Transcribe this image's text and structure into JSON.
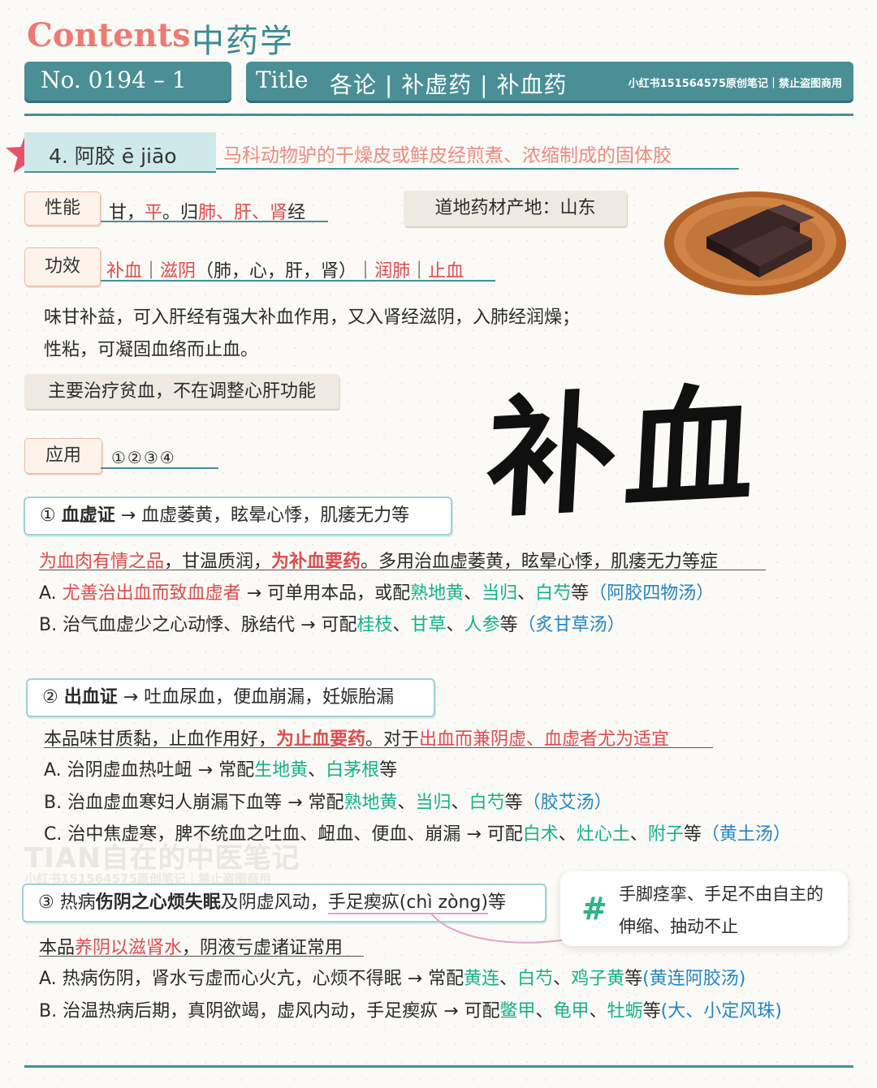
{
  "header": {
    "contents": "Contents",
    "subject": "中药学",
    "no_text": "No. 0194 – 1",
    "title_label": "Title",
    "title_text": "各论 | 补虚药 | 补血药",
    "copyright": "小红书151564575原创笔记｜禁止盗图商用"
  },
  "herb": {
    "heading": "4.  阿胶 ē jiāo",
    "definition": "马科动物驴的干燥皮或鲜皮经煎煮、浓缩制成的固体胶"
  },
  "xingneng": {
    "label": "性能",
    "p1": "甘，",
    "p2": "平",
    "p3": "。归",
    "p4": "肺、肝、肾",
    "p5": "经"
  },
  "origin": "道地药材产地：山东",
  "gongxiao": {
    "label": "功效",
    "p1": "补血",
    "p2": "｜",
    "p3": "滋阴",
    "p4": "（肺，心，肝，肾）｜",
    "p5": "润肺",
    "p6": "｜",
    "p7": "止血"
  },
  "description": {
    "line1": "味甘补益，可入肝经有强大补血作用，又入肾经滋阴，入肺经润燥；",
    "line2": "性粘，可凝固血络而止血。"
  },
  "note": "主要治疗贫血，不在调整心肝功能",
  "yingyong": {
    "label": "应用",
    "items": "①②③④"
  },
  "calligraphy": "补血",
  "section1": {
    "box": {
      "num": "① ",
      "name": "血虚证",
      "rest": " → 血虚萎黄，眩晕心悸，肌痿无力等"
    },
    "intro": {
      "p1": "为血肉有情之品",
      "p2": "，甘温质润，",
      "p3": "为补血要药",
      "p4": "。多用治血虚萎黄，眩晕心悸，肌痿无力等症"
    },
    "a": {
      "p1": "A. ",
      "p2": "尤善治出血而致血虚者",
      "p3": " → 可单用本品，或配",
      "p4": "熟地黄",
      "p5": "、",
      "p6": "当归",
      "p7": "、",
      "p8": "白芍",
      "p9": "等",
      "p10": "（阿胶四物汤）"
    },
    "b": {
      "p1": "B. 治气血虚少之心动悸、脉结代 → 可配",
      "p2": "桂枝",
      "p3": "、",
      "p4": "甘草",
      "p5": "、",
      "p6": "人参",
      "p7": "等",
      "p8": "（炙甘草汤）"
    }
  },
  "section2": {
    "box": {
      "num": "② ",
      "name": "出血证",
      "rest": " → 吐血尿血，便血崩漏，妊娠胎漏"
    },
    "intro": {
      "p1": "本品味甘质黏，止血作用好，",
      "p2": "为止血要药",
      "p3": "。对于",
      "p4": "出血而兼阴虚、血虚者尤为适宜"
    },
    "a": {
      "p1": "A. 治阴虚血热吐衄 → 常配",
      "p2": "生地黄",
      "p3": "、",
      "p4": "白茅根",
      "p5": "等"
    },
    "b": {
      "p1": "B. 治血虚血寒妇人崩漏下血等 → 常配",
      "p2": "熟地黄",
      "p3": "、",
      "p4": "当归",
      "p5": "、",
      "p6": "白芍",
      "p7": "等",
      "p8": "（胶艾汤）"
    },
    "c": {
      "p1": "C. 治中焦虚寒，脾不统血之吐血、衄血、便血、崩漏 → 可配",
      "p2": "白术",
      "p3": "、",
      "p4": "灶心土",
      "p5": "、",
      "p6": "附子",
      "p7": "等",
      "p8": "（黄土汤）"
    }
  },
  "watermark": {
    "line1": "TIAN自在的中医笔记",
    "line2": "小红书151564575原创笔记｜禁止盗图商用"
  },
  "tip": {
    "icon": "#",
    "text": "手脚痉挛、手足不由自主的伸缩、抽动不止"
  },
  "section3": {
    "box": {
      "num": "③ 热病",
      "name": "伤阴之心烦失眠",
      "mid": "及阴虚风动，",
      "term": "手足瘈疭(chì zòng)",
      "end": "等"
    },
    "intro": {
      "p1": "本品",
      "p2": "养阴以滋肾水",
      "p3": "，阴液亏虚诸证常用"
    },
    "a": {
      "p1": "A. 热病伤阴，肾水亏虚而心火亢，心烦不得眠 → 常配",
      "p2": "黄连",
      "p3": "、",
      "p4": "白芍",
      "p5": "、",
      "p6": "鸡子黄",
      "p7": "等",
      "p8": "(黄连阿胶汤)"
    },
    "b": {
      "p1": "B. 治温热病后期，真阴欲竭，虚风内动，手足瘈疭 → 可配",
      "p2": "鳖甲",
      "p3": "、",
      "p4": "龟甲",
      "p5": "、",
      "p6": "牡蛎",
      "p7": "等",
      "p8": "(大、小定风珠)"
    }
  },
  "colors": {
    "accent": "#4a8f96",
    "red": "#e14b4b",
    "green": "#13b38a",
    "blue": "#2386c9",
    "coral": "#ee7a72"
  }
}
